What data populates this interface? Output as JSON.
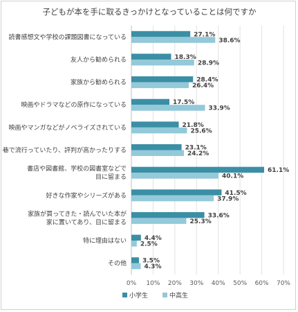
{
  "chart_data": {
    "type": "bar",
    "orientation": "horizontal",
    "title": "子どもが本を手に取るきっかけとなっていることは何ですか",
    "xlim": [
      0,
      70
    ],
    "x_ticks": [
      "0%",
      "10%",
      "20%",
      "30%",
      "40%",
      "50%",
      "60%",
      "70%"
    ],
    "gridlines": true,
    "legend_position": "bottom",
    "categories": [
      [
        "読書感想文や学校の課題図書になっている"
      ],
      [
        "友人から勧められる"
      ],
      [
        "家族から勧められる"
      ],
      [
        "映画やドラマなどの原作になっている"
      ],
      [
        "映画やマンガなどがノベライズされている"
      ],
      [
        "巷で流行っていたり、評判が高かったりする"
      ],
      [
        "書店や図書館、学校の図書室などで",
        "目に留まる"
      ],
      [
        "好きな作家やシリーズがある"
      ],
      [
        "家族が買ってきた・読んでいた本が",
        "家に置いてあり、目に留まる"
      ],
      [
        "特に理由はない"
      ],
      [
        "その他"
      ]
    ],
    "series": [
      {
        "name": "小学生",
        "color": "#3a8fa5",
        "values": [
          27.1,
          18.3,
          28.4,
          17.5,
          21.8,
          23.1,
          61.1,
          41.5,
          33.6,
          4.4,
          3.5
        ],
        "labels": [
          "27.1%",
          "18.3%",
          "28.4%",
          "17.5%",
          "21.8%",
          "23.1%",
          "61.1%",
          "41.5%",
          "33.6%",
          "4.4%",
          "3.5%"
        ]
      },
      {
        "name": "中高生",
        "color": "#93c9d9",
        "values": [
          38.6,
          28.9,
          26.4,
          33.9,
          25.6,
          24.2,
          40.1,
          37.9,
          25.3,
          2.5,
          4.3
        ],
        "labels": [
          "38.6%",
          "28.9%",
          "26.4%",
          "33.9%",
          "25.6%",
          "24.2%",
          "40.1%",
          "37.9%",
          "25.3%",
          "2.5%",
          "4.3%"
        ]
      }
    ]
  }
}
